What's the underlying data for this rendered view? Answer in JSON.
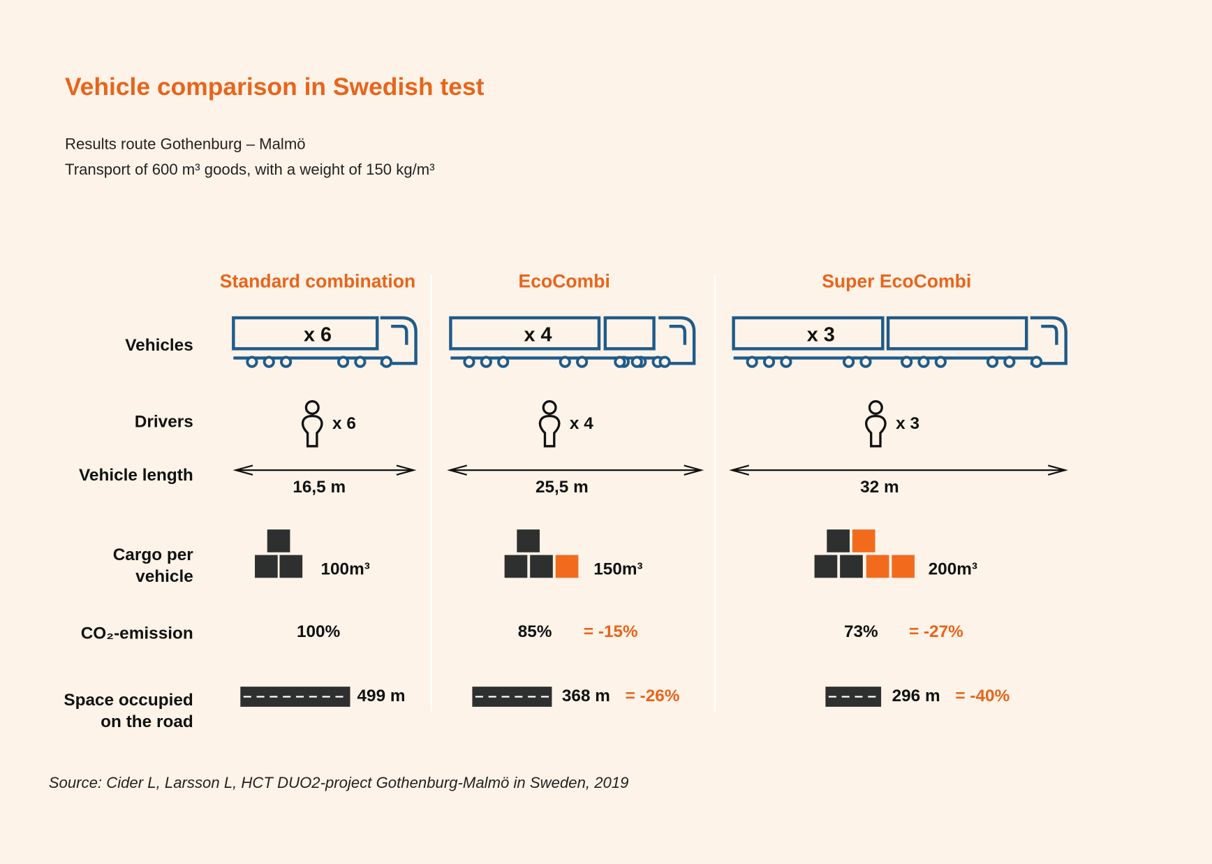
{
  "header": {
    "title": "Vehicle comparison in Swedish test",
    "subtitle_lines": [
      "Results route Gothenburg – Malmö",
      "Transport of 600 m³ goods, with a weight of 150 kg/m³"
    ]
  },
  "row_labels": [
    "Vehicles",
    "Drivers",
    "Vehicle length",
    "Cargo per\nvehicle",
    "CO₂-emission",
    "Space occupied\non the road"
  ],
  "columns": [
    {
      "name": "Standard combination",
      "vehicles": "x 6",
      "drivers": "x 6",
      "length": "16,5 m",
      "cargo": "100m³",
      "co2": "100%",
      "space": "499 m"
    },
    {
      "name": "EcoCombi",
      "vehicles": "x 4",
      "drivers": "x 4",
      "length": "25,5 m",
      "cargo": "150m³",
      "co2": "85%",
      "co2_change": "= -15%",
      "space": "368 m",
      "space_change": "= -26%"
    },
    {
      "name": "Super EcoCombi",
      "vehicles": "x 3",
      "drivers": "x 3",
      "length": "32 m",
      "cargo": "200m³",
      "co2": "73%",
      "co2_change": "= -27%",
      "space": "296 m",
      "space_change": "= -40%"
    }
  ],
  "source": "Source: Cider L, Larsson L, HCT DUO2-project Gothenburg-Malmö in Sweden, 2019"
}
